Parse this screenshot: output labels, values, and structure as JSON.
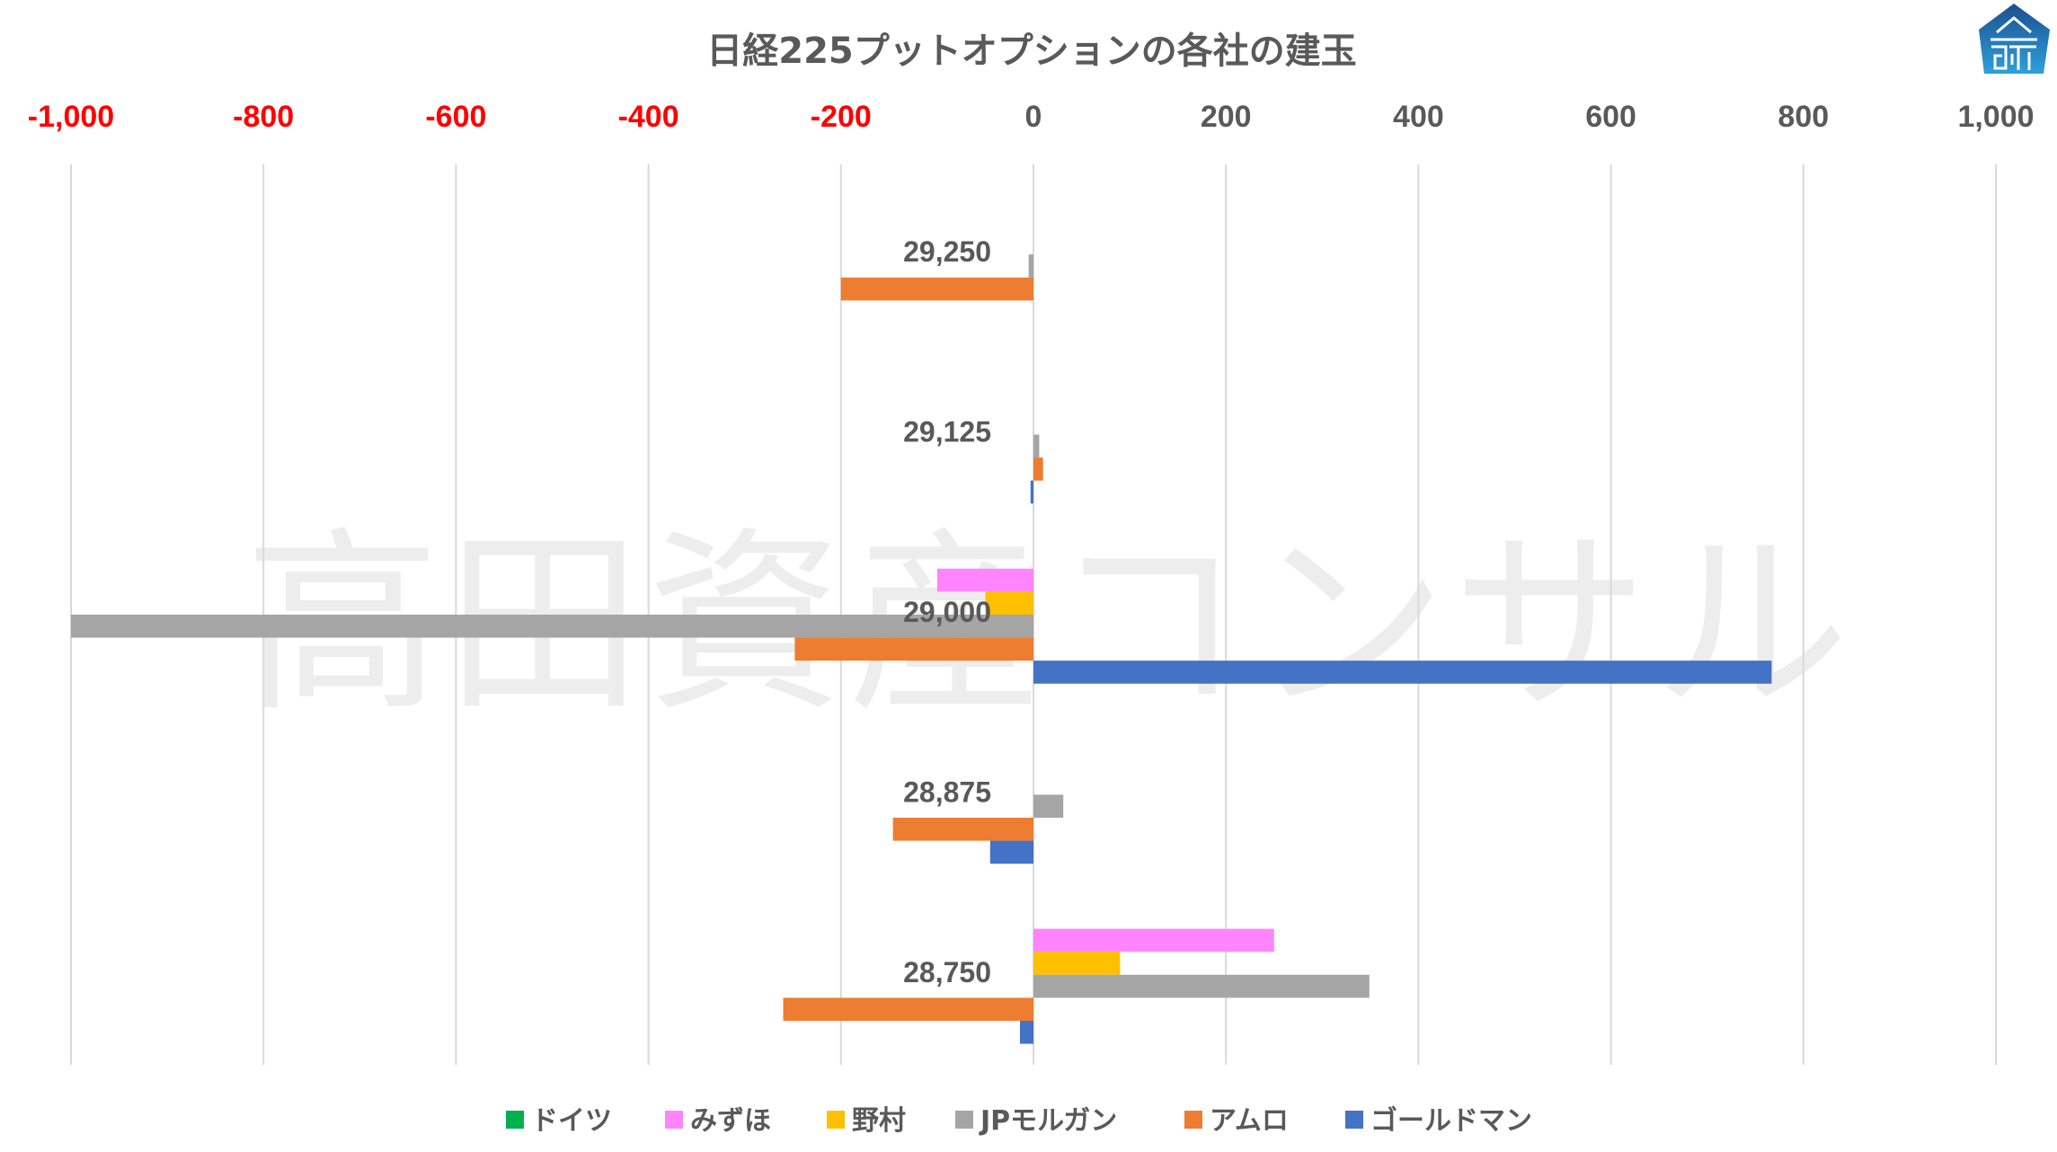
{
  "chart_data": {
    "type": "bar",
    "orientation": "horizontal",
    "title": "日経225プットオプションの各社の建玉",
    "xlabel": "",
    "ylabel": "",
    "xlim": [
      -1000,
      1000
    ],
    "x_ticks": [
      -1000,
      -800,
      -600,
      -400,
      -200,
      0,
      200,
      400,
      600,
      800,
      1000
    ],
    "x_tick_labels": [
      "-1,000",
      "-800",
      "-600",
      "-400",
      "-200",
      "0",
      "200",
      "400",
      "600",
      "800",
      "1,000"
    ],
    "negative_tick_color": "#FF0000",
    "positive_tick_color": "#595959",
    "axis_position": "top",
    "grid": true,
    "legend_position": "bottom",
    "categories": [
      "29,250",
      "29,125",
      "29,000",
      "28,875",
      "28,750"
    ],
    "series": [
      {
        "name": "ドイツ",
        "color": "#00B050",
        "values": [
          0,
          0,
          0,
          0,
          0
        ]
      },
      {
        "name": "みずほ",
        "color": "#FF85FF",
        "values": [
          0,
          0,
          -100,
          0,
          250
        ]
      },
      {
        "name": "野村",
        "color": "#FFC000",
        "values": [
          0,
          0,
          -50,
          0,
          90
        ]
      },
      {
        "name": "JPモルガン",
        "color": "#A5A5A5",
        "values": [
          -5,
          6,
          -1000,
          31,
          349
        ]
      },
      {
        "name": "アムロ",
        "color": "#ED7D31",
        "values": [
          -200,
          10,
          -248,
          -146,
          -260
        ]
      },
      {
        "name": "ゴールドマン",
        "color": "#4472C4",
        "values": [
          0,
          -3,
          767,
          -45,
          -14
        ]
      }
    ],
    "watermark": "高田資産コンサル"
  },
  "logo": {
    "icon": "takata-logo-icon",
    "color": "#1F6FB5"
  }
}
